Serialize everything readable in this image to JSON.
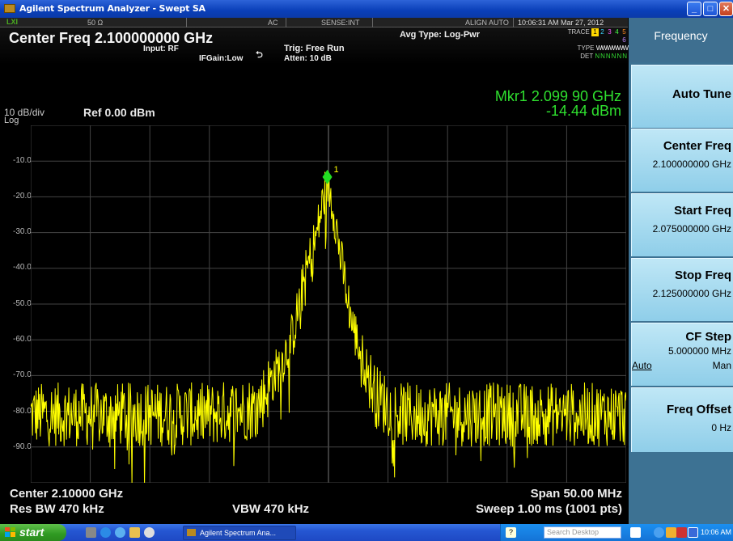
{
  "window": {
    "title": "Agilent Spectrum Analyzer - Swept SA"
  },
  "status": {
    "impedance": "50 Ω",
    "coupling": "AC",
    "sense": "SENSE:INT",
    "align": "ALIGN AUTO",
    "datetime": "10:06:31 AM Mar 27, 2012",
    "center_freq_label": "Center Freq 2.100000000 GHz",
    "input": "Input: RF",
    "ifgain": "IFGain:Low",
    "trig": "Trig: Free Run",
    "atten": "Atten: 10 dB",
    "avg_type": "Avg Type: Log-Pwr",
    "trace_label": "TRACE",
    "trace_nums": [
      "1",
      "2",
      "3",
      "4",
      "5",
      "6"
    ],
    "type_label": "TYPE",
    "type_value": "WWWWWW",
    "det_label": "DET",
    "det_value": "NNNNNN"
  },
  "marker": {
    "freq": "Mkr1 2.099 90 GHz",
    "level": "-14.44 dBm",
    "label": "1"
  },
  "scale": {
    "per_div": "10 dB/div",
    "mode": "Log",
    "ref": "Ref 0.00 dBm",
    "y_labels": [
      "-10.0",
      "-20.0",
      "-30.0",
      "-40.0",
      "-50.0",
      "-60.0",
      "-70.0",
      "-80.0",
      "-90.0"
    ]
  },
  "footer": {
    "center": "Center 2.10000 GHz",
    "span": "Span 50.00 MHz",
    "rbw": "Res BW 470 kHz",
    "vbw": "VBW 470 kHz",
    "sweep": "Sweep  1.00 ms (1001 pts)"
  },
  "softkeys": {
    "menu_title": "Frequency",
    "auto_tune": "Auto Tune",
    "center_freq": "Center Freq",
    "center_freq_value": "2.100000000 GHz",
    "start_freq": "Start Freq",
    "start_freq_value": "2.075000000 GHz",
    "stop_freq": "Stop Freq",
    "stop_freq_value": "2.125000000 GHz",
    "cf_step": "CF Step",
    "cf_step_value": "5.000000 MHz",
    "cf_step_auto": "Auto",
    "cf_step_man": "Man",
    "freq_offset": "Freq Offset",
    "freq_offset_value": "0 Hz"
  },
  "taskbar": {
    "start": "start",
    "app_button": "Agilent Spectrum Ana...",
    "search_placeholder": "Search Desktop",
    "clock": "10:06 AM"
  },
  "colors": {
    "trace": "#ffff00",
    "marker": "#22dd22",
    "grid": "#444444",
    "softkey_bg": "#3d7293"
  },
  "chart_data": {
    "type": "line",
    "title": "",
    "xlabel": "",
    "ylabel": "",
    "x_range_ghz": [
      2.075,
      2.125
    ],
    "ylim": [
      -100,
      0
    ],
    "center_ghz": 2.1,
    "span_mhz": 50,
    "peak": {
      "x_ghz": 2.0999,
      "y_dbm": -14.44
    },
    "noise_floor_dbm": -80,
    "series": [
      {
        "x": [
          2.075,
          2.08,
          2.085,
          2.09,
          2.094,
          2.096,
          2.097,
          2.098,
          2.099,
          2.0999,
          2.1005,
          2.101,
          2.102,
          2.103,
          2.104,
          2.106,
          2.11,
          2.115,
          2.12,
          2.125
        ],
        "values": [
          -80,
          -80,
          -80,
          -80,
          -78,
          -66,
          -58,
          -42,
          -30,
          -14.44,
          -24,
          -36,
          -55,
          -66,
          -75,
          -80,
          -80,
          -80,
          -80,
          -80
        ]
      }
    ],
    "grid": true
  }
}
